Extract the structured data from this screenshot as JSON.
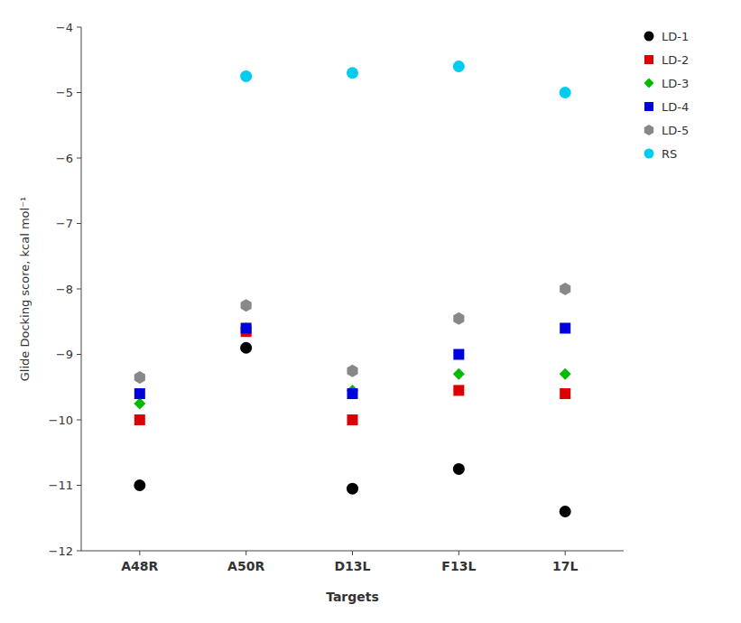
{
  "chart_data": {
    "type": "scatter",
    "x_label": "Targets",
    "y_label": "Glide Docking score, kcal mol⁻¹",
    "categories": [
      "A48R",
      "A50R",
      "D13L",
      "F13L",
      "17L"
    ],
    "series": [
      {
        "name": "LD-1",
        "color": "#000000",
        "marker": "circle",
        "values": [
          -11.0,
          -8.9,
          -11.05,
          -10.75,
          -11.4
        ]
      },
      {
        "name": "LD-2",
        "color": "#dd0000",
        "marker": "square",
        "values": [
          -10.0,
          -8.65,
          -10.0,
          -9.55,
          -9.6
        ]
      },
      {
        "name": "LD-3",
        "color": "#00bb00",
        "marker": "diamond",
        "values": [
          -9.75,
          -8.6,
          -9.55,
          -9.3,
          -9.3
        ]
      },
      {
        "name": "LD-4",
        "color": "#0000dd",
        "marker": "square",
        "values": [
          -9.6,
          -8.6,
          -9.6,
          -9.0,
          -8.6
        ]
      },
      {
        "name": "LD-5",
        "color": "#888888",
        "marker": "hexagon",
        "values": [
          -9.35,
          -8.25,
          -9.25,
          -8.45,
          -8.0
        ]
      },
      {
        "name": "RS",
        "color": "#00ccee",
        "marker": "circle",
        "values": [
          null,
          -4.75,
          -4.7,
          -4.6,
          -5.0
        ]
      }
    ],
    "ylim": [
      -12,
      -4
    ],
    "yticks": [
      {
        "value": -12,
        "label": "−12"
      },
      {
        "value": -11,
        "label": "−11"
      },
      {
        "value": -10,
        "label": "−10"
      },
      {
        "value": -9,
        "label": "−9"
      },
      {
        "value": -8,
        "label": "−8"
      },
      {
        "value": -7,
        "label": "−7"
      },
      {
        "value": -6,
        "label": "−6"
      },
      {
        "value": -5,
        "label": "−5"
      },
      {
        "value": -4,
        "label": "−4"
      }
    ],
    "grid": false,
    "legend": "right"
  }
}
